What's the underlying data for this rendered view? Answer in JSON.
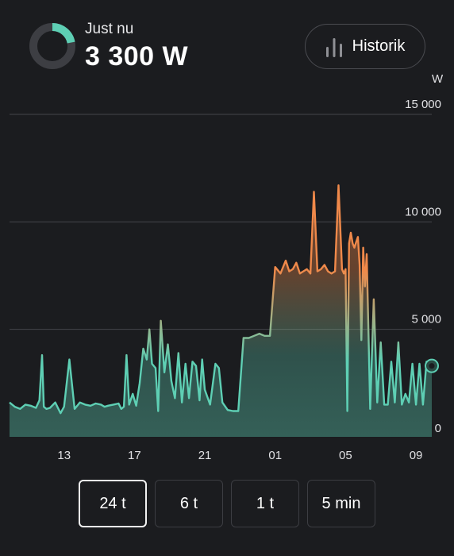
{
  "header": {
    "live_label": "Just nu",
    "live_value": "3 300 W",
    "history_button_label": "Historik",
    "ring_fraction": 0.22,
    "ring_color": "#5ecfb4",
    "ring_track_color": "#3d3e43"
  },
  "chart_data": {
    "type": "area",
    "unit_label": "W",
    "ylim": [
      0,
      15000
    ],
    "y_ticks": [
      {
        "value": 15000,
        "label": "15 000"
      },
      {
        "value": 10000,
        "label": "10 000"
      },
      {
        "value": 5000,
        "label": "5 000"
      },
      {
        "value": 0,
        "label": "0"
      }
    ],
    "x_ticks": [
      {
        "hour": 13,
        "label": "13"
      },
      {
        "hour": 17,
        "label": "17"
      },
      {
        "hour": 21,
        "label": "21"
      },
      {
        "hour": 25,
        "label": "01"
      },
      {
        "hour": 29,
        "label": "05"
      },
      {
        "hour": 33,
        "label": "09"
      }
    ],
    "xlim_hours": [
      9.9,
      33.9
    ],
    "grid": true,
    "colors": {
      "low": "#5ecfb4",
      "high": "#f0894a"
    },
    "current_value": 3300,
    "series": [
      {
        "x": [
          9.9,
          10.2,
          10.5,
          10.8,
          11.1,
          11.4,
          11.6,
          11.75,
          11.85,
          12.0,
          12.2,
          12.5,
          12.8,
          13.0,
          13.3,
          13.6,
          13.9,
          14.2,
          14.5,
          14.8,
          15.1,
          15.3,
          15.5,
          15.8,
          16.1,
          16.25,
          16.4,
          16.55,
          16.7,
          16.9,
          17.1,
          17.3,
          17.5,
          17.7,
          17.85,
          18.0,
          18.2,
          18.35,
          18.5,
          18.7,
          18.9,
          19.1,
          19.3,
          19.5,
          19.7,
          19.9,
          20.1,
          20.3,
          20.5,
          20.7,
          20.85,
          21.0,
          21.3,
          21.6,
          21.8,
          22.0,
          22.3,
          22.6,
          22.9,
          23.2,
          23.5,
          23.8,
          24.1,
          24.4,
          24.7,
          25.0,
          25.3,
          25.6,
          25.8,
          26.0,
          26.2,
          26.4,
          26.6,
          26.8,
          27.0,
          27.2,
          27.4,
          27.6,
          27.8,
          28.0,
          28.2,
          28.4,
          28.6,
          28.8,
          28.9,
          29.0,
          29.1,
          29.2,
          29.3,
          29.4,
          29.5,
          29.7,
          29.8,
          29.9,
          30.0,
          30.1,
          30.2,
          30.4,
          30.6,
          30.8,
          31.0,
          31.2,
          31.4,
          31.6,
          31.8,
          32.0,
          32.2,
          32.4,
          32.6,
          32.8,
          33.0,
          33.2,
          33.4,
          33.6,
          33.8,
          33.9
        ],
        "values": [
          1600,
          1400,
          1300,
          1500,
          1450,
          1350,
          1700,
          3800,
          1400,
          1300,
          1350,
          1600,
          1100,
          1400,
          3600,
          1300,
          1600,
          1500,
          1450,
          1550,
          1500,
          1400,
          1450,
          1500,
          1550,
          1300,
          1400,
          3800,
          1500,
          2000,
          1450,
          2500,
          4100,
          3600,
          5000,
          3400,
          3200,
          1200,
          5400,
          3000,
          4300,
          2600,
          1800,
          3900,
          1600,
          3400,
          1800,
          3500,
          3300,
          1700,
          3600,
          2200,
          1500,
          3400,
          3200,
          1600,
          1250,
          1200,
          1200,
          4600,
          4600,
          4700,
          4800,
          4700,
          4700,
          7900,
          7600,
          8200,
          7700,
          7800,
          8100,
          7600,
          7700,
          7800,
          7600,
          11400,
          7700,
          7800,
          8000,
          7700,
          7600,
          7700,
          11700,
          7800,
          7600,
          7800,
          1200,
          9000,
          9500,
          9000,
          8800,
          9300,
          8000,
          4500,
          8800,
          7000,
          8500,
          1300,
          6400,
          1600,
          4400,
          1500,
          1500,
          3500,
          1600,
          4400,
          1500,
          2000,
          1600,
          3400,
          1500,
          3400,
          1500,
          3500,
          3400,
          3300
        ]
      }
    ]
  },
  "ranges": {
    "items": [
      {
        "label": "24 t",
        "active": true
      },
      {
        "label": "6 t",
        "active": false
      },
      {
        "label": "1 t",
        "active": false
      },
      {
        "label": "5 min",
        "active": false
      }
    ]
  }
}
